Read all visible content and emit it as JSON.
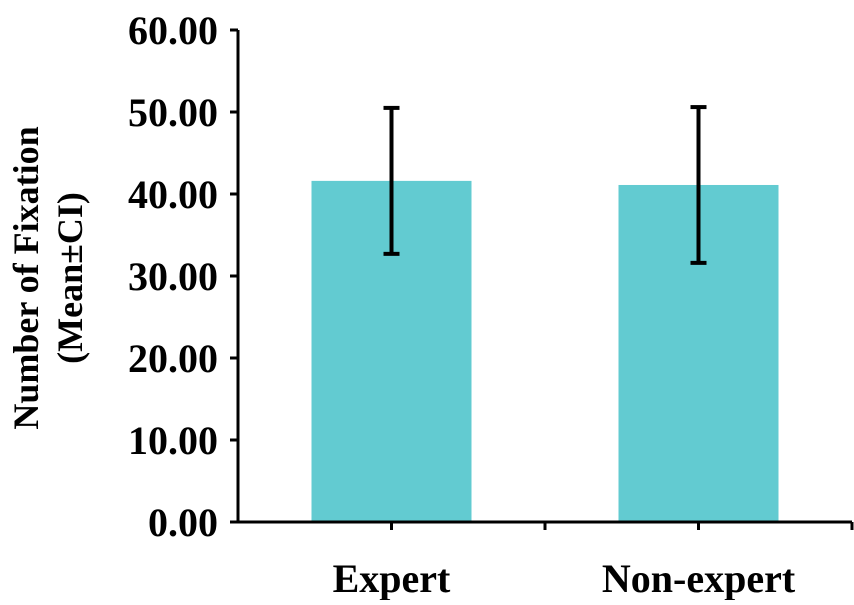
{
  "chart_data": {
    "type": "bar",
    "title": "",
    "xlabel": "",
    "ylabel_lines": [
      "Number of Fixation",
      "(Mean±CI)"
    ],
    "categories": [
      "Expert",
      "Non-expert"
    ],
    "values": [
      41.6,
      41.1
    ],
    "error_bars": [
      {
        "low": 32.7,
        "high": 50.5
      },
      {
        "low": 31.6,
        "high": 50.6
      }
    ],
    "ylim": [
      0,
      60
    ],
    "yticks": [
      0,
      10,
      20,
      30,
      40,
      50,
      60
    ],
    "ytick_labels": [
      "0.00",
      "10.00",
      "20.00",
      "30.00",
      "40.00",
      "50.00",
      "60.00"
    ],
    "grid": false,
    "legend": "none",
    "colors": {
      "bar": "#62cbd1",
      "axis": "#000000",
      "error_bar": "#000000"
    }
  }
}
